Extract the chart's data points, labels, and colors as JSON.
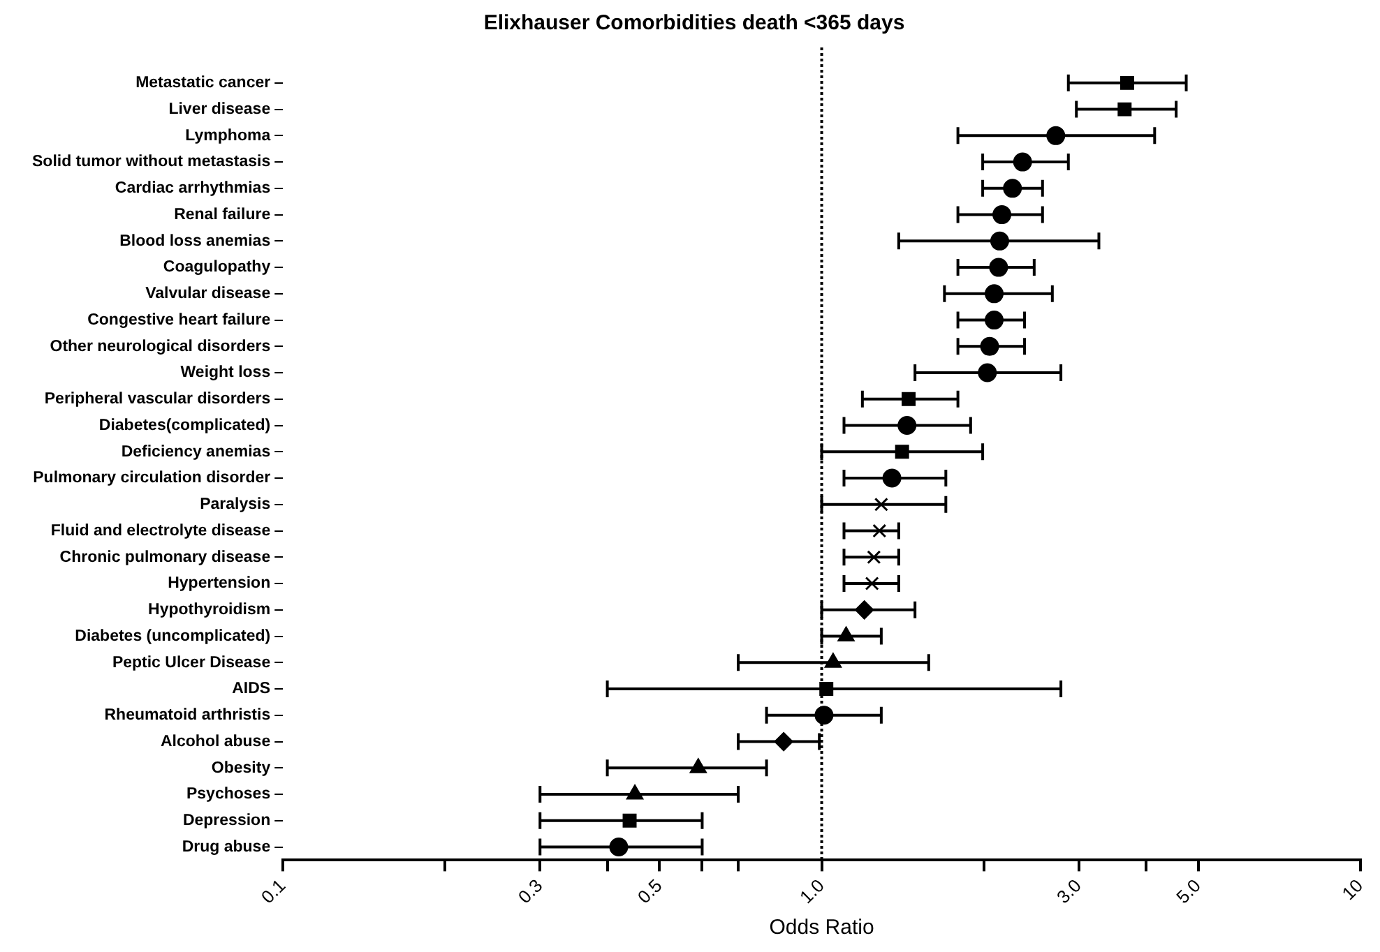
{
  "chart_data": {
    "type": "scatter",
    "orientation": "horizontal",
    "title": "Elixhauser Comorbidities death <365 days",
    "xlabel": "Odds Ratio",
    "categories": [
      "Metastatic cancer",
      "Liver disease",
      "Lymphoma",
      "Solid tumor without metastasis",
      "Cardiac arrhythmias",
      "Renal failure",
      "Blood loss anemias",
      "Coagulopathy",
      "Valvular disease",
      "Congestive heart failure",
      "Other neurological disorders",
      "Weight loss",
      "Peripheral vascular disorders",
      "Diabetes(complicated)",
      "Deficiency anemias",
      "Pulmonary circulation disorder",
      "Paralysis",
      "Fluid and electrolyte disease",
      "Chronic pulmonary disease",
      "Hypertension",
      "Hypothyroidism",
      "Diabetes (uncomplicated)",
      "Peptic Ulcer Disease",
      "AIDS",
      "Rheumatoid arthristis",
      "Alcohol abuse",
      "Obesity",
      "Psychoses",
      "Depression",
      "Drug abuse"
    ],
    "series": [
      {
        "marker": "square",
        "color": "#000000",
        "values": [
          3.69,
          3.65,
          null,
          null,
          null,
          null,
          null,
          null,
          null,
          null,
          null,
          null,
          1.45,
          null,
          1.41,
          null,
          null,
          null,
          null,
          null,
          null,
          null,
          null,
          1.02,
          null,
          null,
          null,
          null,
          0.44,
          null
        ],
        "errors": [
          [
            2.87,
            4.75
          ],
          [
            2.97,
            4.55
          ],
          null,
          null,
          null,
          null,
          null,
          null,
          null,
          null,
          null,
          null,
          [
            1.19,
            1.79
          ],
          null,
          [
            1.0,
            1.99
          ],
          null,
          null,
          null,
          null,
          null,
          null,
          null,
          null,
          [
            0.4,
            2.78
          ],
          null,
          null,
          null,
          null,
          [
            0.3,
            0.6
          ],
          null
        ]
      },
      {
        "marker": "circle",
        "color": "#000000",
        "values": [
          null,
          null,
          2.72,
          2.36,
          2.26,
          2.16,
          2.14,
          2.13,
          2.09,
          2.09,
          2.05,
          2.03,
          null,
          1.44,
          null,
          1.35,
          null,
          null,
          null,
          null,
          null,
          null,
          null,
          null,
          1.01,
          null,
          null,
          null,
          null,
          0.42
        ],
        "errors": [
          null,
          null,
          [
            1.79,
            4.15
          ],
          [
            1.99,
            2.87
          ],
          [
            1.99,
            2.57
          ],
          [
            1.79,
            2.57
          ],
          [
            1.39,
            3.27
          ],
          [
            1.79,
            2.48
          ],
          [
            1.69,
            2.68
          ],
          [
            1.79,
            2.38
          ],
          [
            1.79,
            2.38
          ],
          [
            1.49,
            2.78
          ],
          null,
          [
            1.1,
            1.89
          ],
          null,
          [
            1.1,
            1.7
          ],
          null,
          null,
          null,
          null,
          null,
          null,
          null,
          null,
          [
            0.79,
            1.29
          ],
          null,
          null,
          null,
          null,
          [
            0.3,
            0.6
          ]
        ]
      },
      {
        "marker": "triangle",
        "color": "#000000",
        "values": [
          null,
          null,
          null,
          null,
          null,
          null,
          null,
          null,
          null,
          null,
          null,
          null,
          null,
          null,
          null,
          null,
          null,
          null,
          null,
          null,
          null,
          1.11,
          1.05,
          null,
          null,
          null,
          0.59,
          0.45,
          null,
          null
        ],
        "errors": [
          null,
          null,
          null,
          null,
          null,
          null,
          null,
          null,
          null,
          null,
          null,
          null,
          null,
          null,
          null,
          null,
          null,
          null,
          null,
          null,
          null,
          [
            1.0,
            1.29
          ],
          [
            0.7,
            1.58
          ],
          null,
          null,
          null,
          [
            0.4,
            0.79
          ],
          [
            0.3,
            0.7
          ],
          null,
          null
        ]
      },
      {
        "marker": "diamond",
        "color": "#000000",
        "values": [
          null,
          null,
          null,
          null,
          null,
          null,
          null,
          null,
          null,
          null,
          null,
          null,
          null,
          null,
          null,
          null,
          null,
          null,
          null,
          null,
          1.2,
          null,
          null,
          null,
          null,
          0.85,
          null,
          null,
          null,
          null
        ],
        "errors": [
          null,
          null,
          null,
          null,
          null,
          null,
          null,
          null,
          null,
          null,
          null,
          null,
          null,
          null,
          null,
          null,
          null,
          null,
          null,
          null,
          [
            1.0,
            1.49
          ],
          null,
          null,
          null,
          null,
          [
            0.7,
            0.99
          ],
          null,
          null,
          null,
          null
        ]
      },
      {
        "marker": "cross",
        "color": "#000000",
        "values": [
          null,
          null,
          null,
          null,
          null,
          null,
          null,
          null,
          null,
          null,
          null,
          null,
          null,
          null,
          null,
          null,
          1.29,
          1.28,
          1.25,
          1.24,
          null,
          null,
          null,
          null,
          null,
          null,
          null,
          null,
          null,
          null
        ],
        "errors": [
          null,
          null,
          null,
          null,
          null,
          null,
          null,
          null,
          null,
          null,
          null,
          null,
          null,
          null,
          null,
          null,
          [
            1.0,
            1.7
          ],
          [
            1.1,
            1.39
          ],
          [
            1.1,
            1.39
          ],
          [
            1.1,
            1.39
          ],
          null,
          null,
          null,
          null,
          null,
          null,
          null,
          null,
          null,
          null
        ]
      }
    ],
    "xlim": [
      0.1,
      10
    ],
    "xticks": [
      0.1,
      {
        "value": 0.2,
        "label": null
      },
      {
        "value": 0.3,
        "label": "0.3"
      },
      {
        "value": 0.4,
        "label": null
      },
      {
        "value": 0.5,
        "label": "0.5"
      },
      {
        "value": 0.6,
        "label": null
      },
      {
        "value": 0.7,
        "label": null
      },
      {
        "value": 1,
        "label": "1.0"
      },
      {
        "value": 2,
        "label": null
      },
      {
        "value": 3,
        "label": "3.0"
      },
      {
        "value": 4,
        "label": null
      },
      {
        "value": 5,
        "label": "5.0"
      },
      10
    ],
    "log": "x",
    "grid": false,
    "legend": false,
    "ref_lines": [
      {
        "axis": "x",
        "value": 1,
        "line_style": "dotted",
        "color": "#000000"
      }
    ]
  }
}
